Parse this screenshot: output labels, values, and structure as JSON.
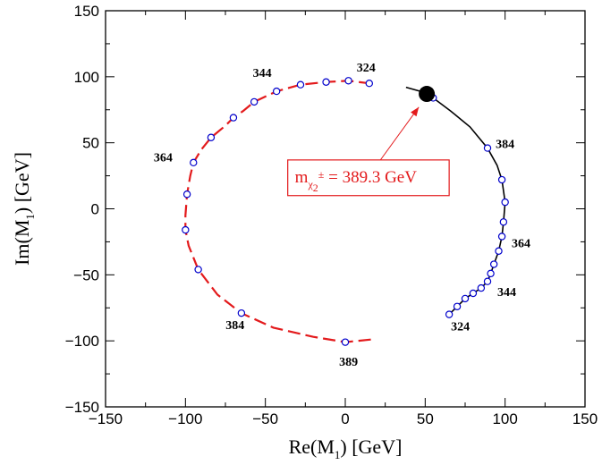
{
  "chart_data": {
    "type": "line",
    "xlabel": {
      "pre": "Re(M",
      "sub": "1",
      "post": ") [GeV]"
    },
    "ylabel": {
      "pre": "Im(M",
      "sub": "1",
      "post": ") [GeV]"
    },
    "xlim": [
      -150,
      150
    ],
    "ylim": [
      -150,
      150
    ],
    "xticks": [
      "−150",
      "−100",
      "−50",
      "0",
      "50",
      "100",
      "150"
    ],
    "yticks": [
      "−150",
      "−100",
      "−50",
      "0",
      "50",
      "100",
      "150"
    ],
    "grid": false,
    "series": [
      {
        "style": "dashed",
        "color": "#e31a1c",
        "line": [
          [
            16,
            -99
          ],
          [
            0,
            -101
          ],
          [
            -20,
            -97
          ],
          [
            -45,
            -90
          ],
          [
            -65,
            -79
          ],
          [
            -80,
            -65
          ],
          [
            -92,
            -46
          ],
          [
            -98,
            -28
          ],
          [
            -100,
            -16
          ],
          [
            -100,
            -5
          ],
          [
            -99,
            11
          ],
          [
            -97,
            25
          ],
          [
            -95,
            35
          ],
          [
            -90,
            45
          ],
          [
            -84,
            54
          ],
          [
            -75,
            63
          ],
          [
            -70,
            69
          ],
          [
            -64,
            74
          ],
          [
            -57,
            81
          ],
          [
            -43,
            89
          ],
          [
            -28,
            94
          ],
          [
            -12,
            96
          ],
          [
            2,
            97
          ],
          [
            15,
            95
          ]
        ],
        "points": [
          [
            15,
            95
          ],
          [
            2,
            97
          ],
          [
            -12,
            96
          ],
          [
            -28,
            94
          ],
          [
            -43,
            89
          ],
          [
            -57,
            81
          ],
          [
            -70,
            69
          ],
          [
            -84,
            54
          ],
          [
            -95,
            35
          ],
          [
            -99,
            11
          ],
          [
            -100,
            -16
          ],
          [
            -92,
            -46
          ],
          [
            -65,
            -79
          ],
          [
            0,
            -101
          ]
        ]
      },
      {
        "style": "solid",
        "color": "#000000",
        "line": [
          [
            38,
            92
          ],
          [
            50,
            88
          ],
          [
            55,
            84
          ],
          [
            66,
            74
          ],
          [
            78,
            62
          ],
          [
            89,
            46
          ],
          [
            95,
            33
          ],
          [
            98,
            22
          ],
          [
            100,
            5
          ],
          [
            99,
            -10
          ],
          [
            98,
            -21
          ],
          [
            96,
            -32
          ],
          [
            93,
            -42
          ],
          [
            91,
            -49
          ],
          [
            89,
            -55
          ],
          [
            85,
            -60
          ],
          [
            80,
            -64
          ],
          [
            75,
            -68
          ],
          [
            70,
            -74
          ],
          [
            65,
            -80
          ]
        ],
        "points": [
          [
            55,
            84
          ],
          [
            89,
            46
          ],
          [
            98,
            22
          ],
          [
            100,
            5
          ],
          [
            99,
            -10
          ],
          [
            98,
            -21
          ],
          [
            96,
            -32
          ],
          [
            93,
            -42
          ],
          [
            91,
            -49
          ],
          [
            89,
            -55
          ],
          [
            85,
            -60
          ],
          [
            80,
            -64
          ],
          [
            75,
            -68
          ],
          [
            70,
            -74
          ],
          [
            65,
            -80
          ]
        ]
      }
    ],
    "marker": {
      "x": 51,
      "y": 87
    },
    "point_labels": [
      {
        "text": "324",
        "x": 13,
        "y": 104
      },
      {
        "text": "344",
        "x": -52,
        "y": 100
      },
      {
        "text": "364",
        "x": -114,
        "y": 36
      },
      {
        "text": "384",
        "x": -69,
        "y": -91
      },
      {
        "text": "389",
        "x": 2,
        "y": -119
      },
      {
        "text": "384",
        "x": 100,
        "y": 46
      },
      {
        "text": "364",
        "x": 110,
        "y": -29
      },
      {
        "text": "344",
        "x": 101,
        "y": -66
      },
      {
        "text": "324",
        "x": 72,
        "y": -92
      }
    ],
    "annotation": {
      "pre": "m",
      "sub": "χ",
      "subsub": "2",
      "sup": "±",
      "post": " = 389.3 GeV",
      "color": "#e31a1c",
      "box": {
        "x0": -36,
        "x1": 65,
        "y0": 37,
        "y1": 10
      },
      "arrow_from": {
        "x": 22,
        "y": 37
      },
      "arrow_to": {
        "x": 46,
        "y": 77
      }
    }
  }
}
